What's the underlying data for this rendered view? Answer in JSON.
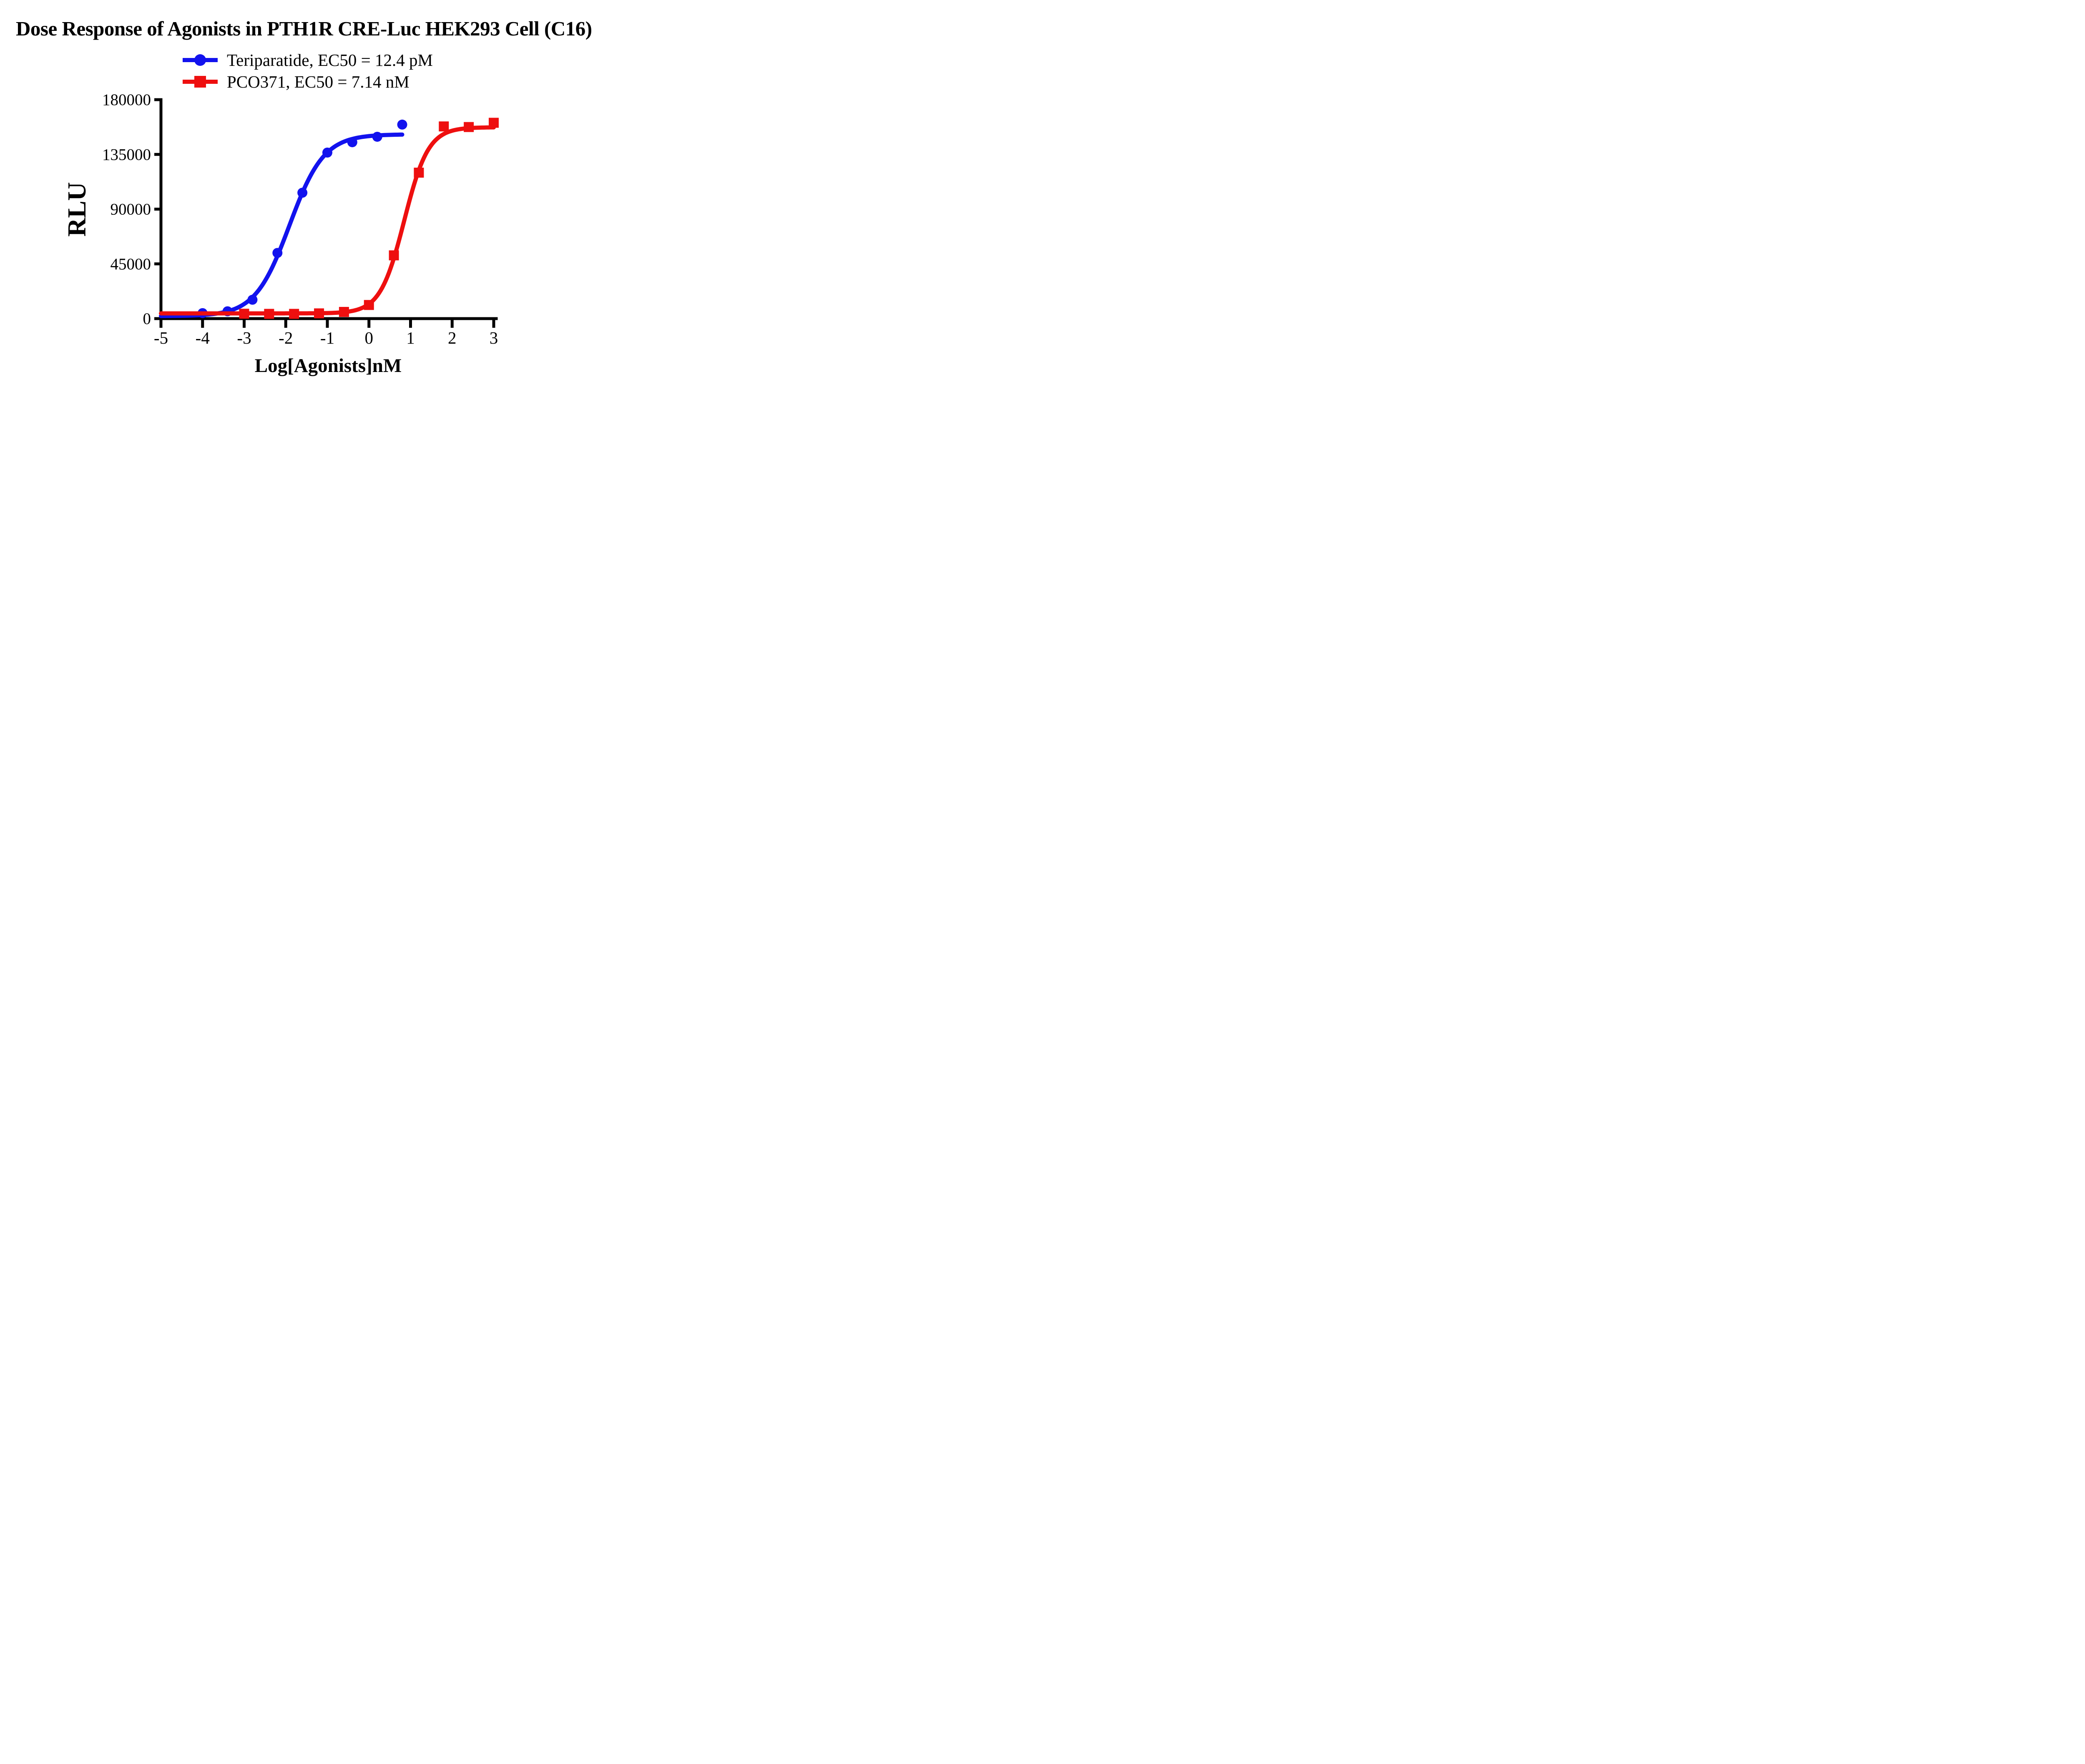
{
  "title": "Dose Response of Agonists in PTH1R CRE-Luc HEK293 Cell (C16)",
  "legend": [
    {
      "label": "Teriparatide, EC50 = 12.4 pM",
      "marker": "circle",
      "color": "#1212EE"
    },
    {
      "label": "PCO371, EC50 = 7.14 nM",
      "marker": "square",
      "color": "#EE0F0F"
    }
  ],
  "axes": {
    "x": {
      "label": "Log[Agonists]nM",
      "ticks": [
        -5,
        -4,
        -3,
        -2,
        -1,
        0,
        1,
        2,
        3
      ],
      "range": [
        -5,
        3
      ]
    },
    "y": {
      "label": "RLU",
      "ticks": [
        0,
        45000,
        90000,
        135000,
        180000
      ],
      "range": [
        0,
        180000
      ]
    }
  },
  "colors": {
    "teriparatide": "#1212EE",
    "pco371": "#EE0F0F",
    "axis": "#000000",
    "background": "#FFFFFF"
  },
  "chart_data": {
    "type": "scatter",
    "subtype": "dose-response sigmoid curves with markers",
    "title": "Dose Response of Agonists in PTH1R CRE-Luc HEK293 Cell (C16)",
    "xlabel": "Log[Agonists]nM",
    "ylabel": "RLU",
    "xlim": [
      -5,
      3
    ],
    "ylim": [
      0,
      180000
    ],
    "grid": false,
    "legend_position": "top-center",
    "series": [
      {
        "name": "Teriparatide",
        "ec50_text": "EC50 = 12.4 pM",
        "color": "#1212EE",
        "marker": "circle",
        "points": [
          {
            "x": -4.0,
            "y": 4500
          },
          {
            "x": -3.4,
            "y": 6000
          },
          {
            "x": -2.8,
            "y": 15500
          },
          {
            "x": -2.2,
            "y": 54000
          },
          {
            "x": -1.6,
            "y": 103500
          },
          {
            "x": -1.0,
            "y": 136500
          },
          {
            "x": -0.4,
            "y": 145000
          },
          {
            "x": 0.2,
            "y": 149500
          },
          {
            "x": 0.8,
            "y": 159500
          }
        ],
        "fit": {
          "bottom": 2000,
          "top": 151500,
          "logEC50": -1.91,
          "hill": 1.05,
          "x_start": -5,
          "x_end": 0.82
        }
      },
      {
        "name": "PCO371",
        "ec50_text": "EC50 = 7.14 nM",
        "color": "#EE0F0F",
        "marker": "square",
        "points": [
          {
            "x": -3.0,
            "y": 4000
          },
          {
            "x": -2.4,
            "y": 3900
          },
          {
            "x": -1.8,
            "y": 3900
          },
          {
            "x": -1.2,
            "y": 4300
          },
          {
            "x": -0.6,
            "y": 5500
          },
          {
            "x": 0.0,
            "y": 11200
          },
          {
            "x": 0.6,
            "y": 52000
          },
          {
            "x": 1.2,
            "y": 120000
          },
          {
            "x": 1.8,
            "y": 158000
          },
          {
            "x": 2.4,
            "y": 157500
          },
          {
            "x": 3.0,
            "y": 161000
          }
        ],
        "fit": {
          "bottom": 4300,
          "top": 157300,
          "logEC50": 0.85,
          "hill": 1.5,
          "x_start": -5,
          "x_end": 3.02
        }
      }
    ]
  }
}
